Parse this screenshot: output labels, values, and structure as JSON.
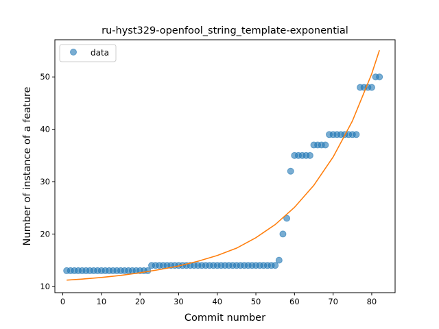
{
  "chart_data": {
    "type": "scatter",
    "title": "ru-hyst329-openfool_string_template-exponential",
    "xlabel": "Commit number",
    "ylabel": "Number of instance of a feature",
    "xlim": [
      -2.05,
      86.05
    ],
    "ylim": [
      8.8,
      57.1
    ],
    "xticks": [
      0,
      10,
      20,
      30,
      40,
      50,
      60,
      70,
      80
    ],
    "yticks": [
      10,
      20,
      30,
      40,
      50
    ],
    "grid": false,
    "legend": {
      "position": "top-left",
      "entries": [
        "data"
      ]
    },
    "series": [
      {
        "name": "data",
        "kind": "scatter",
        "color": "#1f77b4",
        "x": [
          1,
          2,
          3,
          4,
          5,
          6,
          7,
          8,
          9,
          10,
          11,
          12,
          13,
          14,
          15,
          16,
          17,
          18,
          19,
          20,
          21,
          22,
          23,
          24,
          25,
          26,
          27,
          28,
          29,
          30,
          31,
          32,
          33,
          34,
          35,
          36,
          37,
          38,
          39,
          40,
          41,
          42,
          43,
          44,
          45,
          46,
          47,
          48,
          49,
          50,
          51,
          52,
          53,
          54,
          55,
          56,
          57,
          58,
          59,
          60,
          61,
          62,
          63,
          64,
          65,
          66,
          67,
          68,
          69,
          70,
          71,
          72,
          73,
          74,
          75,
          76,
          77,
          78,
          79,
          80,
          81,
          82
        ],
        "y": [
          13,
          13,
          13,
          13,
          13,
          13,
          13,
          13,
          13,
          13,
          13,
          13,
          13,
          13,
          13,
          13,
          13,
          13,
          13,
          13,
          13,
          13,
          14,
          14,
          14,
          14,
          14,
          14,
          14,
          14,
          14,
          14,
          14,
          14,
          14,
          14,
          14,
          14,
          14,
          14,
          14,
          14,
          14,
          14,
          14,
          14,
          14,
          14,
          14,
          14,
          14,
          14,
          14,
          14,
          14,
          15,
          20,
          23,
          32,
          35,
          35,
          35,
          35,
          35,
          37,
          37,
          37,
          37,
          39,
          39,
          39,
          39,
          39,
          39,
          39,
          39,
          48,
          48,
          48,
          48,
          50,
          50
        ]
      },
      {
        "name": "",
        "kind": "line",
        "color": "#ff7f0e",
        "x": [
          1,
          5,
          10,
          15,
          20,
          25,
          30,
          35,
          40,
          45,
          50,
          55,
          60,
          65,
          70,
          75,
          80,
          82
        ],
        "y": [
          11.2,
          11.4,
          11.7,
          12.1,
          12.6,
          13.2,
          13.9,
          14.8,
          15.9,
          17.3,
          19.3,
          21.8,
          25.1,
          29.3,
          34.7,
          41.6,
          50.6,
          55.1
        ]
      }
    ]
  }
}
